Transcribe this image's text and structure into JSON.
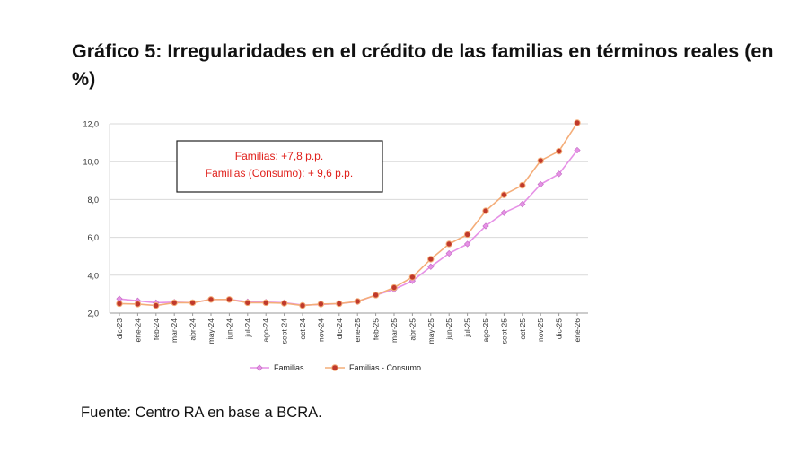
{
  "title": "Gráfico 5: Irregularidades en el crédito de las familias en términos reales (en %)",
  "source": "Fuente: Centro RA en base a BCRA.",
  "chart_data": {
    "type": "line",
    "categories": [
      "dic-23",
      "ene-24",
      "feb-24",
      "mar-24",
      "abr-24",
      "may-24",
      "jun-24",
      "jul-24",
      "ago-24",
      "sept-24",
      "oct-24",
      "nov-24",
      "dic-24",
      "ene-25",
      "feb-25",
      "mar-25",
      "abr-25",
      "may-25",
      "jun-25",
      "jul-25",
      "ago-25",
      "sept-25",
      "oct-25",
      "nov-25",
      "dic-25",
      "ene-26"
    ],
    "series": [
      {
        "name": "Familias",
        "color": "#e691e6",
        "marker": "diamond",
        "values": [
          2.75,
          2.65,
          2.55,
          2.58,
          2.55,
          2.72,
          2.72,
          2.6,
          2.58,
          2.55,
          2.42,
          2.45,
          2.5,
          2.6,
          2.95,
          3.25,
          3.7,
          4.45,
          5.15,
          5.65,
          6.6,
          7.3,
          7.75,
          8.8,
          9.35,
          10.6
        ]
      },
      {
        "name": "Familias - Consumo",
        "color": "#f4ad79",
        "marker_fill": "#c0392b",
        "marker": "circle",
        "values": [
          2.5,
          2.48,
          2.4,
          2.55,
          2.55,
          2.72,
          2.72,
          2.55,
          2.55,
          2.52,
          2.4,
          2.48,
          2.5,
          2.62,
          2.95,
          3.35,
          3.9,
          4.85,
          5.65,
          6.15,
          7.4,
          8.25,
          8.75,
          10.05,
          10.55,
          12.05
        ]
      }
    ],
    "ylim": [
      2.0,
      12.0
    ],
    "yticks": [
      "2,0",
      "4,0",
      "6,0",
      "8,0",
      "10,0",
      "12,0"
    ],
    "grid": true,
    "legend_position": "bottom",
    "annotation": {
      "line1": "Familias: +7,8 p.p.",
      "line2": "Familias (Consumo): + 9,6 p.p.",
      "color": "#e0201b"
    }
  }
}
